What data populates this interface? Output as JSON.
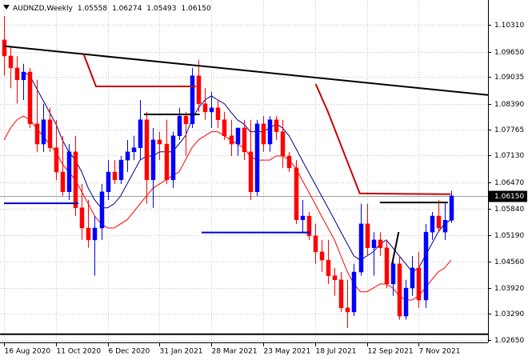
{
  "chart_data": {
    "type": "candlestick",
    "title": "AUDNZD,Weekly",
    "header_values": [
      "1.05558",
      "1.06274",
      "1.05493",
      "1.06150"
    ],
    "categories": [
      "16 Aug 2020",
      null,
      null,
      null,
      null,
      null,
      null,
      null,
      "11 Oct 2020",
      null,
      null,
      null,
      null,
      null,
      null,
      null,
      "6 Dec 2020",
      null,
      null,
      null,
      null,
      null,
      null,
      null,
      "31 Jan 2021",
      null,
      null,
      null,
      null,
      null,
      null,
      null,
      "28 Mar 2021",
      null,
      null,
      null,
      null,
      null,
      null,
      null,
      "23 May 2021",
      null,
      null,
      null,
      null,
      null,
      null,
      null,
      "18 Jul 2021",
      null,
      null,
      null,
      null,
      null,
      null,
      null,
      "12 Sep 2021",
      null,
      null,
      null,
      null,
      null,
      null,
      null,
      "7 Nov 2021",
      null,
      null,
      null,
      null,
      null
    ],
    "open": [
      1.0994,
      1.0955,
      1.0926,
      1.0897,
      1.0916,
      1.079,
      1.0741,
      1.08,
      1.0732,
      1.0673,
      1.0625,
      1.0722,
      1.0586,
      1.0537,
      1.0508,
      1.0537,
      1.0625,
      1.0673,
      1.0654,
      1.0702,
      1.0722,
      1.0732,
      1.08,
      1.0654,
      1.0751,
      1.0741,
      1.0654,
      1.0761,
      1.0809,
      1.079,
      1.0907,
      1.0839,
      1.0819,
      1.0829,
      1.08,
      1.0761,
      1.0741,
      1.078,
      1.0722,
      1.0625,
      1.079,
      1.0741,
      1.08,
      1.0771,
      1.0712,
      1.0683,
      1.0557,
      1.0566,
      1.0518,
      1.0479,
      1.0459,
      1.0421,
      1.0411,
      1.0343,
      1.0333,
      1.043,
      1.0547,
      1.0489,
      1.0508,
      1.0489,
      1.0401,
      1.045,
      1.0323,
      1.0391,
      1.044,
      1.0362,
      1.0527,
      1.0566,
      1.0527,
      1.05558
    ],
    "high": [
      1.1052,
      1.0975,
      1.0955,
      1.0936,
      1.0926,
      1.0897,
      1.0839,
      1.0829,
      1.08,
      1.0761,
      1.0741,
      1.0761,
      1.0644,
      1.0605,
      1.0566,
      1.0644,
      1.0702,
      1.0702,
      1.0712,
      1.0751,
      1.0761,
      1.0848,
      1.0819,
      1.078,
      1.0771,
      1.08,
      1.0771,
      1.0829,
      1.0819,
      1.0926,
      1.0945,
      1.0877,
      1.0868,
      1.0848,
      1.0819,
      1.08,
      1.078,
      1.08,
      1.08,
      1.08,
      1.0809,
      1.0809,
      1.0809,
      1.08,
      1.0722,
      1.0702,
      1.0605,
      1.0576,
      1.0547,
      1.0508,
      1.0508,
      1.044,
      1.043,
      1.0411,
      1.045,
      1.0596,
      1.0596,
      1.0527,
      1.0527,
      1.0508,
      1.0469,
      1.0469,
      1.0411,
      1.0469,
      1.0479,
      1.0547,
      1.0576,
      1.0605,
      1.06,
      1.06274
    ],
    "low": [
      1.0907,
      1.0877,
      1.0839,
      1.0848,
      1.078,
      1.0722,
      1.0722,
      1.0722,
      1.0654,
      1.0615,
      1.0605,
      1.0566,
      1.0508,
      1.0489,
      1.0421,
      1.0508,
      1.0605,
      1.0644,
      1.0644,
      1.0673,
      1.0702,
      1.0702,
      1.0596,
      1.0586,
      1.0702,
      1.0644,
      1.0634,
      1.0751,
      1.0712,
      1.078,
      1.0819,
      1.08,
      1.078,
      1.078,
      1.0751,
      1.0712,
      1.0712,
      1.0702,
      1.0605,
      1.0615,
      1.0722,
      1.0722,
      1.0751,
      1.0683,
      1.0673,
      1.0547,
      1.0527,
      1.0508,
      1.045,
      1.043,
      1.0401,
      1.0372,
      1.0333,
      1.0294,
      1.0323,
      1.0421,
      1.0469,
      1.0421,
      1.0469,
      1.0391,
      1.0372,
      1.0314,
      1.0314,
      1.0372,
      1.0343,
      1.0343,
      1.0508,
      1.0527,
      1.0508,
      1.05493
    ],
    "close": [
      1.0955,
      1.0926,
      1.0897,
      1.0916,
      1.079,
      1.0741,
      1.08,
      1.0732,
      1.0673,
      1.0625,
      1.0722,
      1.0586,
      1.0537,
      1.0508,
      1.0537,
      1.0625,
      1.0673,
      1.0654,
      1.0702,
      1.0722,
      1.0732,
      1.08,
      1.0654,
      1.0751,
      1.0741,
      1.0654,
      1.0761,
      1.0809,
      1.079,
      1.0907,
      1.0839,
      1.0819,
      1.0829,
      1.08,
      1.0761,
      1.0741,
      1.078,
      1.0722,
      1.0625,
      1.079,
      1.0741,
      1.08,
      1.0771,
      1.0712,
      1.0683,
      1.0557,
      1.0566,
      1.0518,
      1.0479,
      1.0459,
      1.0421,
      1.0411,
      1.0343,
      1.0333,
      1.043,
      1.0547,
      1.0489,
      1.0508,
      1.0489,
      1.0401,
      1.045,
      1.0323,
      1.0391,
      1.044,
      1.0362,
      1.0527,
      1.0566,
      1.0537,
      1.0556,
      1.0615
    ],
    "bull_color": "#0000ff",
    "bear_color": "#ff0000",
    "indicators": [
      {
        "color": "#00008b",
        "values": [
          null,
          null,
          null,
          1.0916,
          1.0907,
          1.0877,
          1.0848,
          1.0819,
          1.079,
          1.0751,
          1.0722,
          1.0702,
          1.0673,
          1.0634,
          1.0605,
          1.0586,
          1.0586,
          1.0596,
          1.0615,
          1.0644,
          1.0673,
          1.0702,
          1.0712,
          1.0712,
          1.0722,
          1.0722,
          1.0722,
          1.0741,
          1.0761,
          1.08,
          1.0829,
          1.0848,
          1.0858,
          1.0848,
          1.0839,
          1.0819,
          1.08,
          1.079,
          1.0771,
          1.0771,
          1.0771,
          1.078,
          1.079,
          1.078,
          1.0761,
          1.0732,
          1.0702,
          1.0673,
          1.0644,
          1.0615,
          1.0586,
          1.0557,
          1.0527,
          1.0498,
          1.0469,
          1.0459,
          1.0469,
          1.0479,
          1.0498,
          1.0508,
          1.0489,
          1.0469,
          1.045,
          1.043,
          1.044,
          1.0469,
          1.0498,
          1.0527,
          1.0547,
          1.0557
        ]
      },
      {
        "color": "#ff0000",
        "values": [
          1.0751,
          1.078,
          1.08,
          1.0809,
          1.08,
          1.078,
          1.0761,
          1.0741,
          1.0722,
          1.0693,
          1.0673,
          1.0654,
          1.0625,
          1.0596,
          1.0566,
          1.0547,
          1.0537,
          1.0537,
          1.0547,
          1.0557,
          1.0576,
          1.0596,
          1.0615,
          1.0634,
          1.0644,
          1.0654,
          1.0664,
          1.0673,
          1.0702,
          1.0732,
          1.0751,
          1.0761,
          1.0771,
          1.0771,
          1.0761,
          1.0751,
          1.0741,
          1.0732,
          1.0712,
          1.0702,
          1.0702,
          1.0702,
          1.0712,
          1.0712,
          1.0702,
          1.0683,
          1.0654,
          1.0625,
          1.0596,
          1.0566,
          1.0537,
          1.0508,
          1.0469,
          1.043,
          1.0401,
          1.0382,
          1.0382,
          1.0391,
          1.0401,
          1.0401,
          1.0391,
          1.0372,
          1.0362,
          1.0362,
          1.0372,
          1.0391,
          1.0411,
          1.043,
          1.044,
          1.0459
        ]
      }
    ],
    "drawings": [
      {
        "color": "#000000",
        "width": 2,
        "x": [
          0,
          74.7
        ],
        "y": [
          1.0979,
          1.086
        ]
      },
      {
        "color": "#cc0000",
        "width": 2,
        "x": [
          12.3,
          14.2,
          29.6
        ],
        "y": [
          1.0959,
          1.0881,
          1.0881
        ]
      },
      {
        "color": "#cc0000",
        "width": 2,
        "x": [
          48.1,
          50,
          54.9,
          68.9
        ],
        "y": [
          1.0887,
          1.0819,
          1.0621,
          1.0619
        ]
      },
      {
        "color": "#000000",
        "width": 2,
        "x": [
          21.6,
          30.2
        ],
        "y": [
          1.0813,
          1.0813
        ]
      },
      {
        "color": "#000000",
        "width": 2,
        "x": [
          58,
          68.5
        ],
        "y": [
          1.0599,
          1.0599
        ]
      },
      {
        "color": "#0000cc",
        "width": 2,
        "x": [
          0,
          11.5
        ],
        "y": [
          1.0597,
          1.0597
        ]
      },
      {
        "color": "#0000cc",
        "width": 2,
        "x": [
          30.5,
          47.3
        ],
        "y": [
          1.0526,
          1.0526
        ]
      },
      {
        "color": "#000000",
        "width": 2,
        "x": [
          59.9,
          60.9
        ],
        "y": [
          1.045,
          1.0527
        ]
      },
      {
        "color": "#000000",
        "width": 2,
        "x": [
          -0.6,
          74.7
        ],
        "y": [
          1.0279,
          1.0279
        ]
      }
    ],
    "price_label": {
      "value": 1.0615,
      "label": "1.06150"
    },
    "ylim": [
      1.0259,
      1.1091
    ],
    "yticks": [
      {
        "value": 1.1031,
        "label": "1.10310"
      },
      {
        "value": 1.0965,
        "label": "1.09650"
      },
      {
        "value": 1.09035,
        "label": "1.09035"
      },
      {
        "value": 1.0839,
        "label": "1.08390"
      },
      {
        "value": 1.07765,
        "label": "1.07765"
      },
      {
        "value": 1.0713,
        "label": "1.07130"
      },
      {
        "value": 1.0647,
        "label": "1.06470"
      },
      {
        "value": 1.0584,
        "label": "1.05840"
      },
      {
        "value": 1.0519,
        "label": "1.05190"
      },
      {
        "value": 1.0456,
        "label": "1.04560"
      },
      {
        "value": 1.0392,
        "label": "1.03920"
      },
      {
        "value": 1.0329,
        "label": "1.03290"
      },
      {
        "value": 1.0265,
        "label": "1.02650"
      }
    ],
    "grid": true
  }
}
